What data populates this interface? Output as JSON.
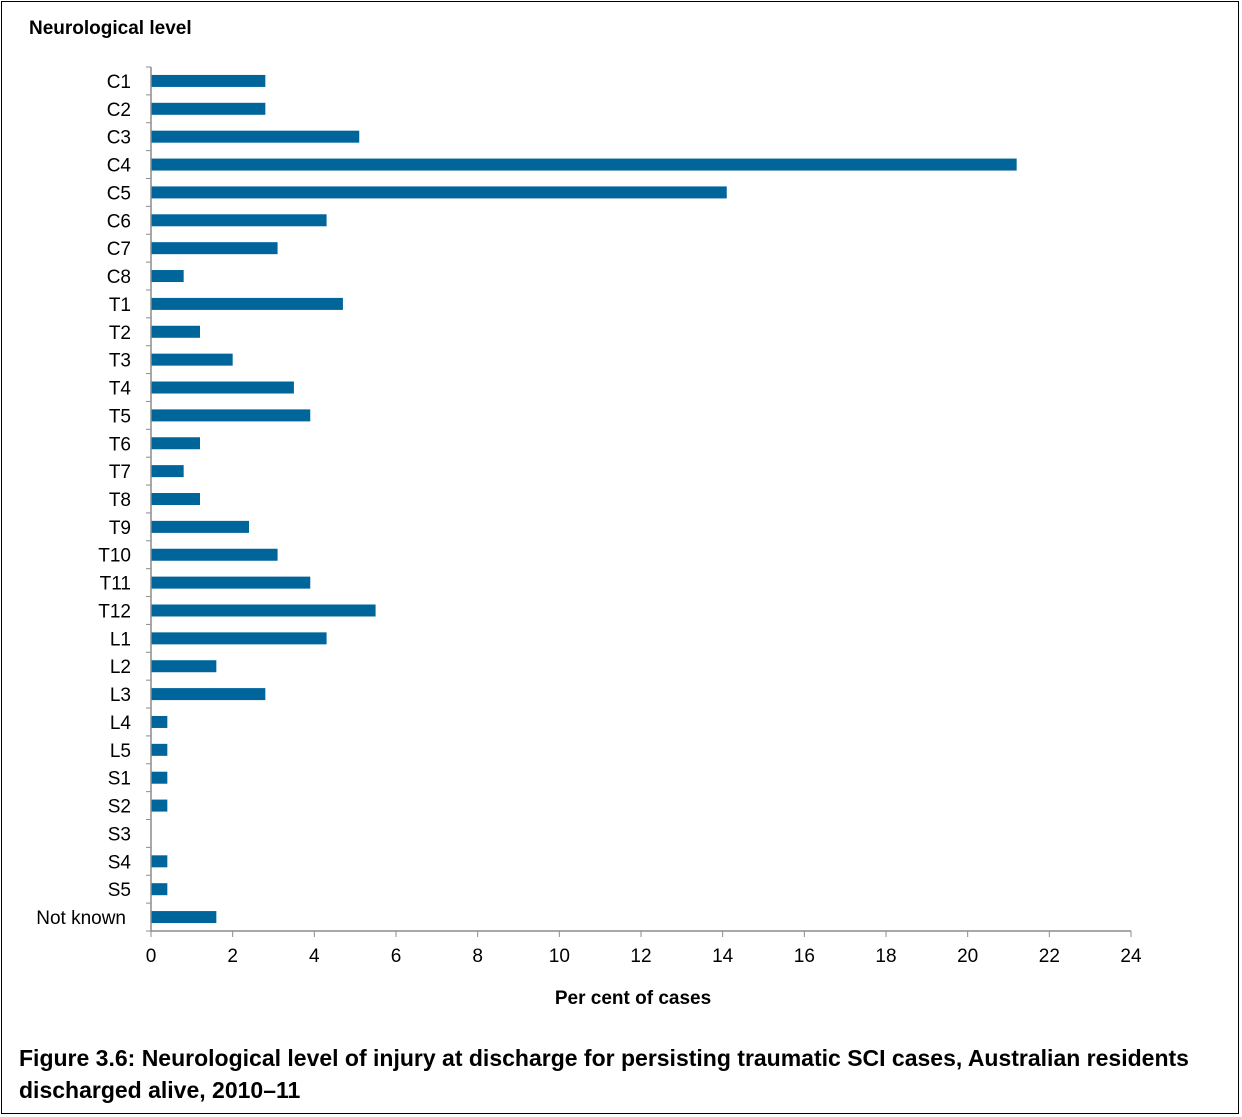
{
  "chart_data": {
    "type": "bar",
    "orientation": "horizontal",
    "ylabel": "Neurological level",
    "xlabel": "Per cent of cases",
    "xlim": [
      0,
      24
    ],
    "xticks": [
      "0",
      "2",
      "4",
      "6",
      "8",
      "10",
      "12",
      "14",
      "16",
      "18",
      "20",
      "22",
      "24"
    ],
    "categories": [
      "C1",
      "C2",
      "C3",
      "C4",
      "C5",
      "C6",
      "C7",
      "C8",
      "T1",
      "T2",
      "T3",
      "T4",
      "T5",
      "T6",
      "T7",
      "T8",
      "T9",
      "T10",
      "T11",
      "T12",
      "L1",
      "L2",
      "L3",
      "L4",
      "L5",
      "S1",
      "S2",
      "S3",
      "S4",
      "S5",
      "Not known"
    ],
    "values": [
      2.8,
      2.8,
      5.1,
      21.2,
      14.1,
      4.3,
      3.1,
      0.8,
      4.7,
      1.2,
      2.0,
      3.5,
      3.9,
      1.2,
      0.8,
      1.2,
      2.4,
      3.1,
      3.9,
      5.5,
      4.3,
      1.6,
      2.8,
      0.4,
      0.4,
      0.4,
      0.4,
      0.0,
      0.4,
      0.4,
      1.6
    ],
    "bar_color": "#00659b",
    "axis_color": "#8c8c8c",
    "grid": false,
    "legend": "none"
  },
  "caption": "Figure 3.6: Neurological level of injury at discharge for persisting traumatic SCI cases, Australian residents discharged alive, 2010–11"
}
